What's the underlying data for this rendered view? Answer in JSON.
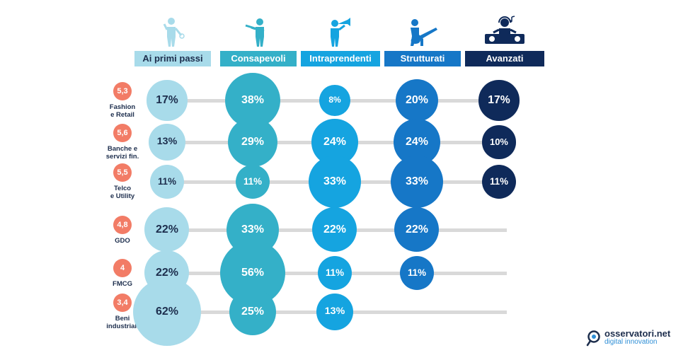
{
  "chart_data": {
    "type": "bubble-matrix",
    "categories": [
      "Ai primi passi",
      "Consapevoli",
      "Intraprendenti",
      "Strutturati",
      "Avanzati"
    ],
    "category_colors": [
      "#a8dbea",
      "#34b0c8",
      "#15a4e0",
      "#1677c7",
      "#0f2a5a"
    ],
    "category_text_colors": [
      "#1d2e4d",
      "#ffffff",
      "#ffffff",
      "#ffffff",
      "#ffffff"
    ],
    "line_color": "#d9d9d9",
    "score_color": "#f27c66",
    "rows": [
      {
        "sector": [
          "Fashion",
          "e Retail"
        ],
        "score": "5,3",
        "values": [
          17,
          38,
          8,
          20,
          17
        ],
        "labels": [
          "17%",
          "38%",
          "8%",
          "20%",
          "17%"
        ]
      },
      {
        "sector": [
          "Banche e",
          "servizi fin."
        ],
        "score": "5,6",
        "values": [
          13,
          29,
          24,
          24,
          10
        ],
        "labels": [
          "13%",
          "29%",
          "24%",
          "24%",
          "10%"
        ]
      },
      {
        "sector": [
          "Telco",
          "e Utility"
        ],
        "score": "5,5",
        "values": [
          11,
          11,
          33,
          33,
          11
        ],
        "labels": [
          "11%",
          "11%",
          "33%",
          "33%",
          "11%"
        ]
      },
      {
        "sector": [
          "GDO"
        ],
        "score": "4,8",
        "values": [
          22,
          33,
          22,
          22,
          null
        ],
        "labels": [
          "22%",
          "33%",
          "22%",
          "22%",
          null
        ]
      },
      {
        "sector": [
          "FMCG"
        ],
        "score": "4",
        "values": [
          22,
          56,
          11,
          11,
          null
        ],
        "labels": [
          "22%",
          "56%",
          "11%",
          "11%",
          null
        ]
      },
      {
        "sector": [
          "Beni",
          "industriali"
        ],
        "score": "3,4",
        "values": [
          62,
          25,
          13,
          null,
          null
        ],
        "labels": [
          "62%",
          "25%",
          "13%",
          null,
          null
        ]
      }
    ]
  },
  "header_icons": [
    "singer-icon",
    "flute-player-icon",
    "trumpet-player-icon",
    "guitarist-icon",
    "dj-icon"
  ],
  "brand": {
    "name": "osservatori.net",
    "tagline": "digital innovation",
    "icon": "magnifier-icon"
  }
}
